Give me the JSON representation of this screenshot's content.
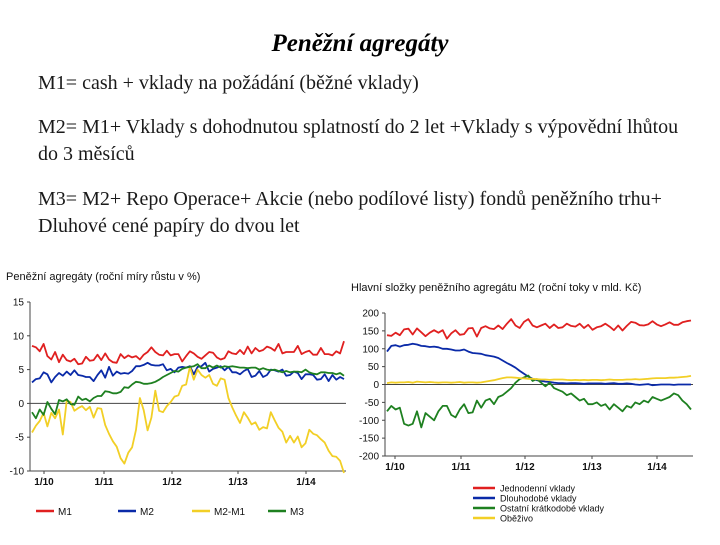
{
  "slide": {
    "title": "Peněžní agregáty",
    "lines": [
      "M1= cash + vklady na požádání (běžné vklady)",
      "M2= M1+ Vklady s dohodnutou splatností do 2 let +Vklady s výpovědní lhůtou do 3 měsíců",
      "M3= M2+ Repo Operace+ Akcie (nebo podílové listy) fondů peněžního trhu+ Dluhové cené papíry do dvou let"
    ]
  },
  "chart_data": [
    {
      "type": "line",
      "title": "Peněžní agregáty (roční míry růstu v %)",
      "x_ticks": [
        "1/10",
        "1/11",
        "1/12",
        "1/13",
        "1/14"
      ],
      "ylim": [
        -10,
        15
      ],
      "y_ticks": [
        "15",
        "10",
        "5",
        "0",
        "-5",
        "-10"
      ],
      "legend_position": "bottom",
      "series": [
        {
          "name": "M1",
          "color": "#e02020",
          "values": [
            8.5,
            8.3,
            7.7,
            8.8,
            7,
            6.5,
            7.6,
            6.1,
            7.2,
            6.4,
            6.2,
            6.6,
            5.8,
            5.9,
            6.9,
            6.3,
            6.4,
            7.2,
            6.4,
            7.4,
            6.5,
            6.1,
            6,
            7.3,
            6.7,
            7.1,
            6.8,
            7,
            6.5,
            7.2,
            7.6,
            8.3,
            7.6,
            7.2,
            7.1,
            7.8,
            7.1,
            7.3,
            7.3,
            6.2,
            7,
            7.7,
            7.4,
            6.9,
            6.6,
            7.1,
            7.6,
            7.5,
            6.8,
            6.5,
            6.7,
            7.7,
            7.4,
            7.3,
            7.9,
            7.3,
            8.4,
            7.4,
            8.2,
            7.7,
            7.9,
            8.4,
            8.2,
            7.8,
            8.8,
            7.4,
            7.6,
            7.6,
            7.6,
            8.5,
            7.3,
            7.6,
            7.8,
            7.2,
            7.2,
            8.2,
            7.3,
            7.3,
            7.1,
            7.7,
            7.4,
            9.2
          ]
        },
        {
          "name": "M2",
          "color": "#0a2aa8",
          "values": [
            3.1,
            3.6,
            3.7,
            4.6,
            4.3,
            3.1,
            3.9,
            4.5,
            4.1,
            4.7,
            4.2,
            4.9,
            4.2,
            4.1,
            3.9,
            3.9,
            3.3,
            4.2,
            4.9,
            3.8,
            5.4,
            4.1,
            4.7,
            4.4,
            4.5,
            4.4,
            4.8,
            5.5,
            5.5,
            5.7,
            6,
            5.7,
            5.6,
            5.6,
            5.8,
            4.9,
            5.1,
            4.6,
            5.3,
            5.4,
            5.3,
            5.5,
            4.3,
            5.4,
            5.5,
            6,
            4.7,
            5.1,
            5.3,
            5.5,
            4.9,
            5.4,
            4.6,
            4.6,
            4.3,
            4.8,
            5.1,
            3.9,
            4.1,
            4.8,
            3.9,
            4.2,
            5,
            4.9,
            4.7,
            5,
            4.1,
            4.2,
            4.7,
            4.5,
            3.6,
            4.3,
            4.3,
            4.2,
            3.5,
            3.6,
            4.3,
            3.3,
            4.2,
            3.5,
            3.9,
            3.6
          ]
        },
        {
          "name": "M2-M1",
          "color": "#f2cf26",
          "values": [
            -4.3,
            -3.3,
            -2.6,
            -1.4,
            -3.4,
            -1.4,
            -2.2,
            -0.9,
            -4.6,
            0.4,
            0.2,
            -1.1,
            -0.7,
            -0.4,
            -1,
            -0.5,
            -2.1,
            -0.7,
            -0.8,
            -3.2,
            -4.5,
            -5.6,
            -6.4,
            -8.1,
            -8.9,
            -7.3,
            -6.5,
            -3.9,
            0.8,
            -1,
            -4,
            -2.1,
            1.9,
            -1.1,
            -1.3,
            -0.4,
            0.2,
            1,
            1.2,
            2.6,
            2.8,
            5.4,
            3.5,
            5,
            4.2,
            3.8,
            4.2,
            2.9,
            2.6,
            3.7,
            3.5,
            0.8,
            -0.6,
            -1.8,
            -2.9,
            -1.3,
            -2.1,
            -3.1,
            -2.8,
            -3.9,
            -3.5,
            -3.7,
            -1.3,
            -2.5,
            -3.6,
            -4.2,
            -5.8,
            -4.8,
            -5.8,
            -4.9,
            -6.5,
            -5.9,
            -3.9,
            -4.5,
            -4.7,
            -5.3,
            -5.8,
            -7,
            -7.8,
            -7.9,
            -8.5,
            -10.3
          ]
        },
        {
          "name": "M3",
          "color": "#1e8020",
          "values": [
            -1.3,
            -2.2,
            -0.9,
            -1.7,
            0.2,
            -0.8,
            -1.6,
            0.5,
            0.3,
            0.6,
            -0.1,
            -0.2,
            1,
            0.5,
            0.7,
            0.3,
            0.8,
            1.1,
            1.1,
            1.8,
            1.7,
            1.5,
            1.5,
            1.7,
            2.4,
            2.3,
            2.8,
            3.2,
            3.1,
            2.9,
            2.9,
            3,
            3.2,
            3.5,
            3.9,
            4.2,
            4.5,
            4.8,
            4.7,
            5.1,
            5.3,
            5.4,
            5.5,
            5.8,
            5.2,
            5.2,
            5.6,
            5.3,
            5.6,
            5.3,
            5.5,
            5.4,
            5.5,
            5.4,
            5.3,
            5.3,
            5.2,
            5.3,
            5.3,
            5,
            5.2,
            5,
            4.9,
            5,
            4.8,
            4.6,
            4.8,
            4.6,
            4.7,
            4.7,
            4.6,
            5,
            4.6,
            4.4,
            4.3,
            4.6,
            4.6,
            4.5,
            4.5,
            4.3,
            4.5,
            4.1
          ]
        }
      ]
    },
    {
      "type": "line",
      "title": "Hlavní složky peněžního agregátu M2 (roční toky v mld. Kč)",
      "x_ticks": [
        "1/10",
        "1/11",
        "1/12",
        "1/13",
        "1/14"
      ],
      "ylim": [
        -200,
        200
      ],
      "y_ticks": [
        "200",
        "150",
        "100",
        "50",
        "0",
        "-50",
        "-100",
        "-150",
        "-200"
      ],
      "legend_position": "bottom",
      "series": [
        {
          "name": "Jednodenní vklady",
          "color": "#e02020",
          "values": [
            138,
            136,
            145,
            138,
            154,
            156,
            140,
            157,
            146,
            135,
            145,
            152,
            145,
            152,
            128,
            143,
            152,
            139,
            141,
            157,
            158,
            134,
            158,
            163,
            157,
            155,
            165,
            155,
            170,
            183,
            165,
            158,
            175,
            183,
            165,
            160,
            165,
            170,
            158,
            168,
            158,
            160,
            170,
            164,
            162,
            170,
            158,
            167,
            153,
            160,
            163,
            170,
            162,
            152,
            165,
            151,
            164,
            175,
            173,
            166,
            165,
            168,
            177,
            168,
            163,
            168,
            174,
            167,
            167,
            174,
            177,
            179
          ]
        },
        {
          "name": "Dlouhodobé vklady",
          "color": "#0a2aa8",
          "values": [
            92,
            108,
            110,
            106,
            110,
            111,
            114,
            112,
            108,
            107,
            105,
            106,
            104,
            100,
            100,
            98,
            95,
            95,
            98,
            92,
            88,
            87,
            86,
            82,
            80,
            78,
            74,
            67,
            60,
            54,
            47,
            38,
            30,
            22,
            16,
            12,
            10,
            8,
            7,
            5,
            4,
            4,
            3,
            4,
            4,
            3,
            2,
            3,
            3,
            3,
            3,
            2,
            3,
            4,
            2,
            2,
            3,
            2,
            0,
            -1,
            0,
            1,
            -2,
            -1,
            0,
            0,
            0,
            -1,
            0,
            0,
            0,
            0
          ]
        },
        {
          "name": "Ostatní krátkodobé vklady",
          "color": "#1e8020",
          "values": [
            -75,
            -60,
            -70,
            -65,
            -110,
            -115,
            -110,
            -75,
            -120,
            -80,
            -90,
            -100,
            -75,
            -60,
            -60,
            -85,
            -92,
            -70,
            -55,
            -80,
            -78,
            -45,
            -65,
            -45,
            -40,
            -55,
            -35,
            -30,
            -20,
            -10,
            5,
            15,
            20,
            25,
            10,
            15,
            5,
            -5,
            5,
            -10,
            -15,
            -20,
            -30,
            -25,
            -35,
            -45,
            -40,
            -55,
            -55,
            -50,
            -60,
            -55,
            -70,
            -55,
            -65,
            -75,
            -60,
            -65,
            -50,
            -55,
            -45,
            -50,
            -35,
            -40,
            -45,
            -40,
            -35,
            -25,
            -30,
            -45,
            -55,
            -70
          ]
        },
        {
          "name": "Oběživo",
          "color": "#f2cf26",
          "values": [
            4,
            6,
            5,
            6,
            6,
            7,
            5,
            8,
            7,
            6,
            7,
            6,
            5,
            6,
            6,
            5,
            6,
            7,
            5,
            6,
            6,
            5,
            6,
            8,
            10,
            12,
            15,
            18,
            20,
            20,
            19,
            18,
            17,
            16,
            16,
            15,
            14,
            14,
            13,
            14,
            14,
            14,
            13,
            12,
            13,
            12,
            13,
            12,
            13,
            13,
            12,
            13,
            14,
            13,
            13,
            13,
            14,
            14,
            15,
            14,
            15,
            16,
            17,
            18,
            18,
            18,
            19,
            19,
            20,
            21,
            22,
            24
          ]
        }
      ]
    }
  ]
}
